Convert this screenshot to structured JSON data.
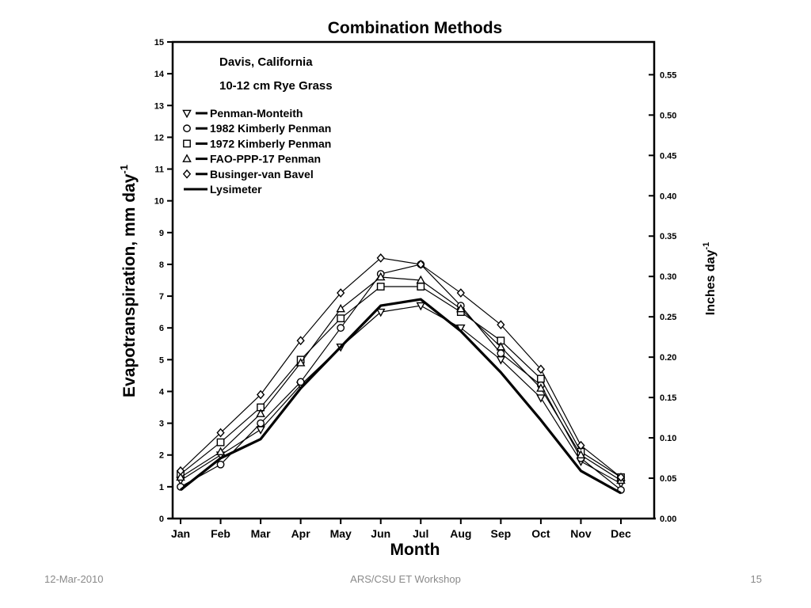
{
  "slide": {
    "footer_date": "12-Mar-2010",
    "footer_center": "ARS/CSU ET Workshop",
    "page_number": "15"
  },
  "chart_data": {
    "type": "line",
    "title": "Combination Methods",
    "annotations": [
      "Davis, California",
      "10-12 cm Rye Grass"
    ],
    "xlabel": "Month",
    "ylabel": "Evapotranspiration, mm day",
    "ylabel_superscript": "-1",
    "y2label": "Inches day",
    "y2label_superscript": "-1",
    "categories": [
      "Jan",
      "Feb",
      "Mar",
      "Apr",
      "May",
      "Jun",
      "Jul",
      "Aug",
      "Sep",
      "Oct",
      "Nov",
      "Dec"
    ],
    "ylim": [
      0,
      15
    ],
    "yticks": [
      0,
      1,
      2,
      3,
      4,
      5,
      6,
      7,
      8,
      9,
      10,
      11,
      12,
      13,
      14,
      15
    ],
    "y2lim": [
      0,
      0.5906
    ],
    "y2ticks": [
      "0.00",
      "0.05",
      "0.10",
      "0.15",
      "0.20",
      "0.25",
      "0.30",
      "0.35",
      "0.40",
      "0.45",
      "0.50",
      "0.55"
    ],
    "legend_position": "top-left",
    "grid": false,
    "series": [
      {
        "name": "Penman-Monteith",
        "marker": "triangle-down",
        "values": [
          1.2,
          2.0,
          2.8,
          4.2,
          5.4,
          6.5,
          6.7,
          6.0,
          5.0,
          3.8,
          1.8,
          1.1
        ]
      },
      {
        "name": "1982 Kimberly Penman",
        "marker": "circle",
        "values": [
          1.0,
          1.7,
          3.0,
          4.3,
          6.0,
          7.7,
          8.0,
          6.7,
          5.2,
          4.2,
          1.9,
          0.9
        ]
      },
      {
        "name": "1972 Kimberly Penman",
        "marker": "square",
        "values": [
          1.4,
          2.4,
          3.5,
          5.0,
          6.3,
          7.3,
          7.3,
          6.5,
          5.6,
          4.4,
          2.1,
          1.3
        ]
      },
      {
        "name": "FAO-PPP-17 Penman",
        "marker": "triangle-up",
        "values": [
          1.3,
          2.1,
          3.3,
          4.9,
          6.6,
          7.6,
          7.5,
          6.6,
          5.4,
          4.1,
          2.0,
          1.2
        ]
      },
      {
        "name": "Businger-van Bavel",
        "marker": "diamond",
        "values": [
          1.5,
          2.7,
          3.9,
          5.6,
          7.1,
          8.2,
          8.0,
          7.1,
          6.1,
          4.7,
          2.3,
          1.3
        ]
      },
      {
        "name": "Lysimeter",
        "marker": "none",
        "values": [
          0.9,
          1.9,
          2.5,
          4.1,
          5.4,
          6.7,
          6.9,
          5.9,
          4.6,
          3.1,
          1.5,
          0.8
        ]
      }
    ]
  }
}
